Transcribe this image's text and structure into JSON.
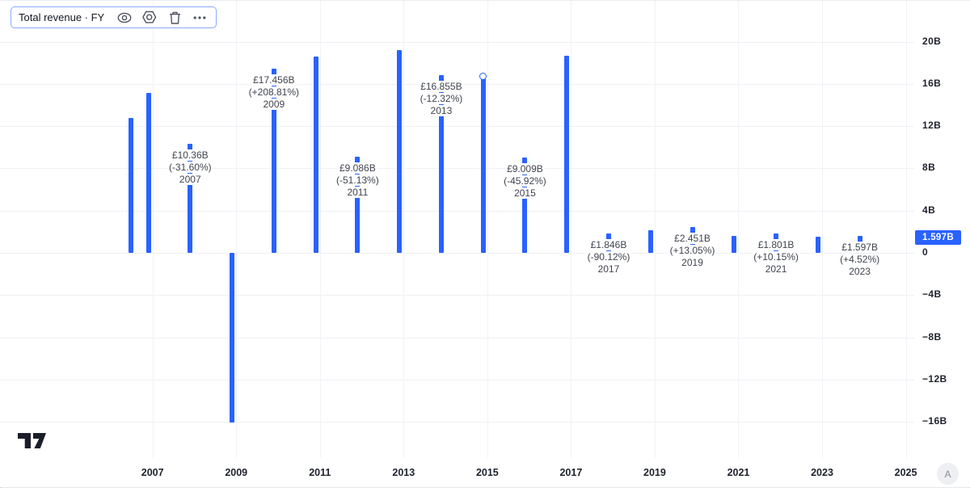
{
  "legend": {
    "title": "Total revenue · FY",
    "icons": [
      "visibility",
      "settings",
      "delete",
      "more-options"
    ]
  },
  "footer": {
    "a_button_label": "A"
  },
  "colors": {
    "accent": "#2962FF",
    "axis_text": "#1e222d",
    "annotation_text": "#40444e",
    "grid": "#eef0f4",
    "badge_bg": "#2962FF",
    "badge_text": "#ffffff"
  },
  "chart_data": {
    "type": "bar",
    "title": "Total revenue · FY",
    "currency_symbol": "£",
    "unit": "billions GBP",
    "x_axis": {
      "tick_years": [
        2007,
        2009,
        2011,
        2013,
        2015,
        2017,
        2019,
        2021,
        2023,
        2025
      ]
    },
    "y_axis": {
      "ticks": [
        {
          "label": "20B",
          "value": 20
        },
        {
          "label": "16B",
          "value": 16
        },
        {
          "label": "12B",
          "value": 12
        },
        {
          "label": "8B",
          "value": 8
        },
        {
          "label": "4B",
          "value": 4
        },
        {
          "label": "0",
          "value": 0
        },
        {
          "label": "−4B",
          "value": -4
        },
        {
          "label": "−8B",
          "value": -8
        },
        {
          "label": "−12B",
          "value": -12
        },
        {
          "label": "−16B",
          "value": -16
        }
      ],
      "badge": {
        "label": "1.597B",
        "value": 1.597
      }
    },
    "bars": [
      {
        "fy": 2005,
        "pos": 2006.48,
        "value": 12.78
      },
      {
        "fy": 2006,
        "pos": 2006.9,
        "value": 15.15
      },
      {
        "fy": 2007,
        "pos": 2007.9,
        "value": 10.36,
        "label_lines": [
          "£10.36B",
          "(-31.60%)",
          "2007"
        ]
      },
      {
        "fy": 2008,
        "pos": 2008.9,
        "value": -16.04
      },
      {
        "fy": 2009,
        "pos": 2009.9,
        "value": 17.456,
        "label_lines": [
          "£17.456B",
          "(+208.81%)",
          "2009"
        ]
      },
      {
        "fy": 2010,
        "pos": 2010.9,
        "value": 18.59
      },
      {
        "fy": 2011,
        "pos": 2011.9,
        "value": 9.086,
        "label_lines": [
          "£9.086B",
          "(-51.13%)",
          "2011"
        ]
      },
      {
        "fy": 2012,
        "pos": 2012.9,
        "value": 19.22
      },
      {
        "fy": 2013,
        "pos": 2013.9,
        "value": 16.855,
        "label_lines": [
          "£16.855B",
          "(-12.32%)",
          "2013"
        ]
      },
      {
        "fy": 2014,
        "pos": 2014.9,
        "value": 16.66,
        "marker": "circle"
      },
      {
        "fy": 2015,
        "pos": 2015.9,
        "value": 9.009,
        "label_lines": [
          "£9.009B",
          "(-45.92%)",
          "2015"
        ]
      },
      {
        "fy": 2016,
        "pos": 2016.9,
        "value": 18.68
      },
      {
        "fy": 2017,
        "pos": 2017.9,
        "value": 1.846,
        "label_lines": [
          "£1.846B",
          "(-90.12%)",
          "2017"
        ]
      },
      {
        "fy": 2018,
        "pos": 2018.9,
        "value": 2.168
      },
      {
        "fy": 2019,
        "pos": 2019.9,
        "value": 2.451,
        "label_lines": [
          "£2.451B",
          "(+13.05%)",
          "2019"
        ]
      },
      {
        "fy": 2020,
        "pos": 2020.9,
        "value": 1.635
      },
      {
        "fy": 2021,
        "pos": 2021.9,
        "value": 1.801,
        "label_lines": [
          "£1.801B",
          "(+10.15%)",
          "2021"
        ]
      },
      {
        "fy": 2022,
        "pos": 2022.9,
        "value": 1.528
      },
      {
        "fy": 2023,
        "pos": 2023.9,
        "value": 1.597,
        "label_lines": [
          "£1.597B",
          "(+4.52%)",
          "2023"
        ]
      }
    ]
  }
}
